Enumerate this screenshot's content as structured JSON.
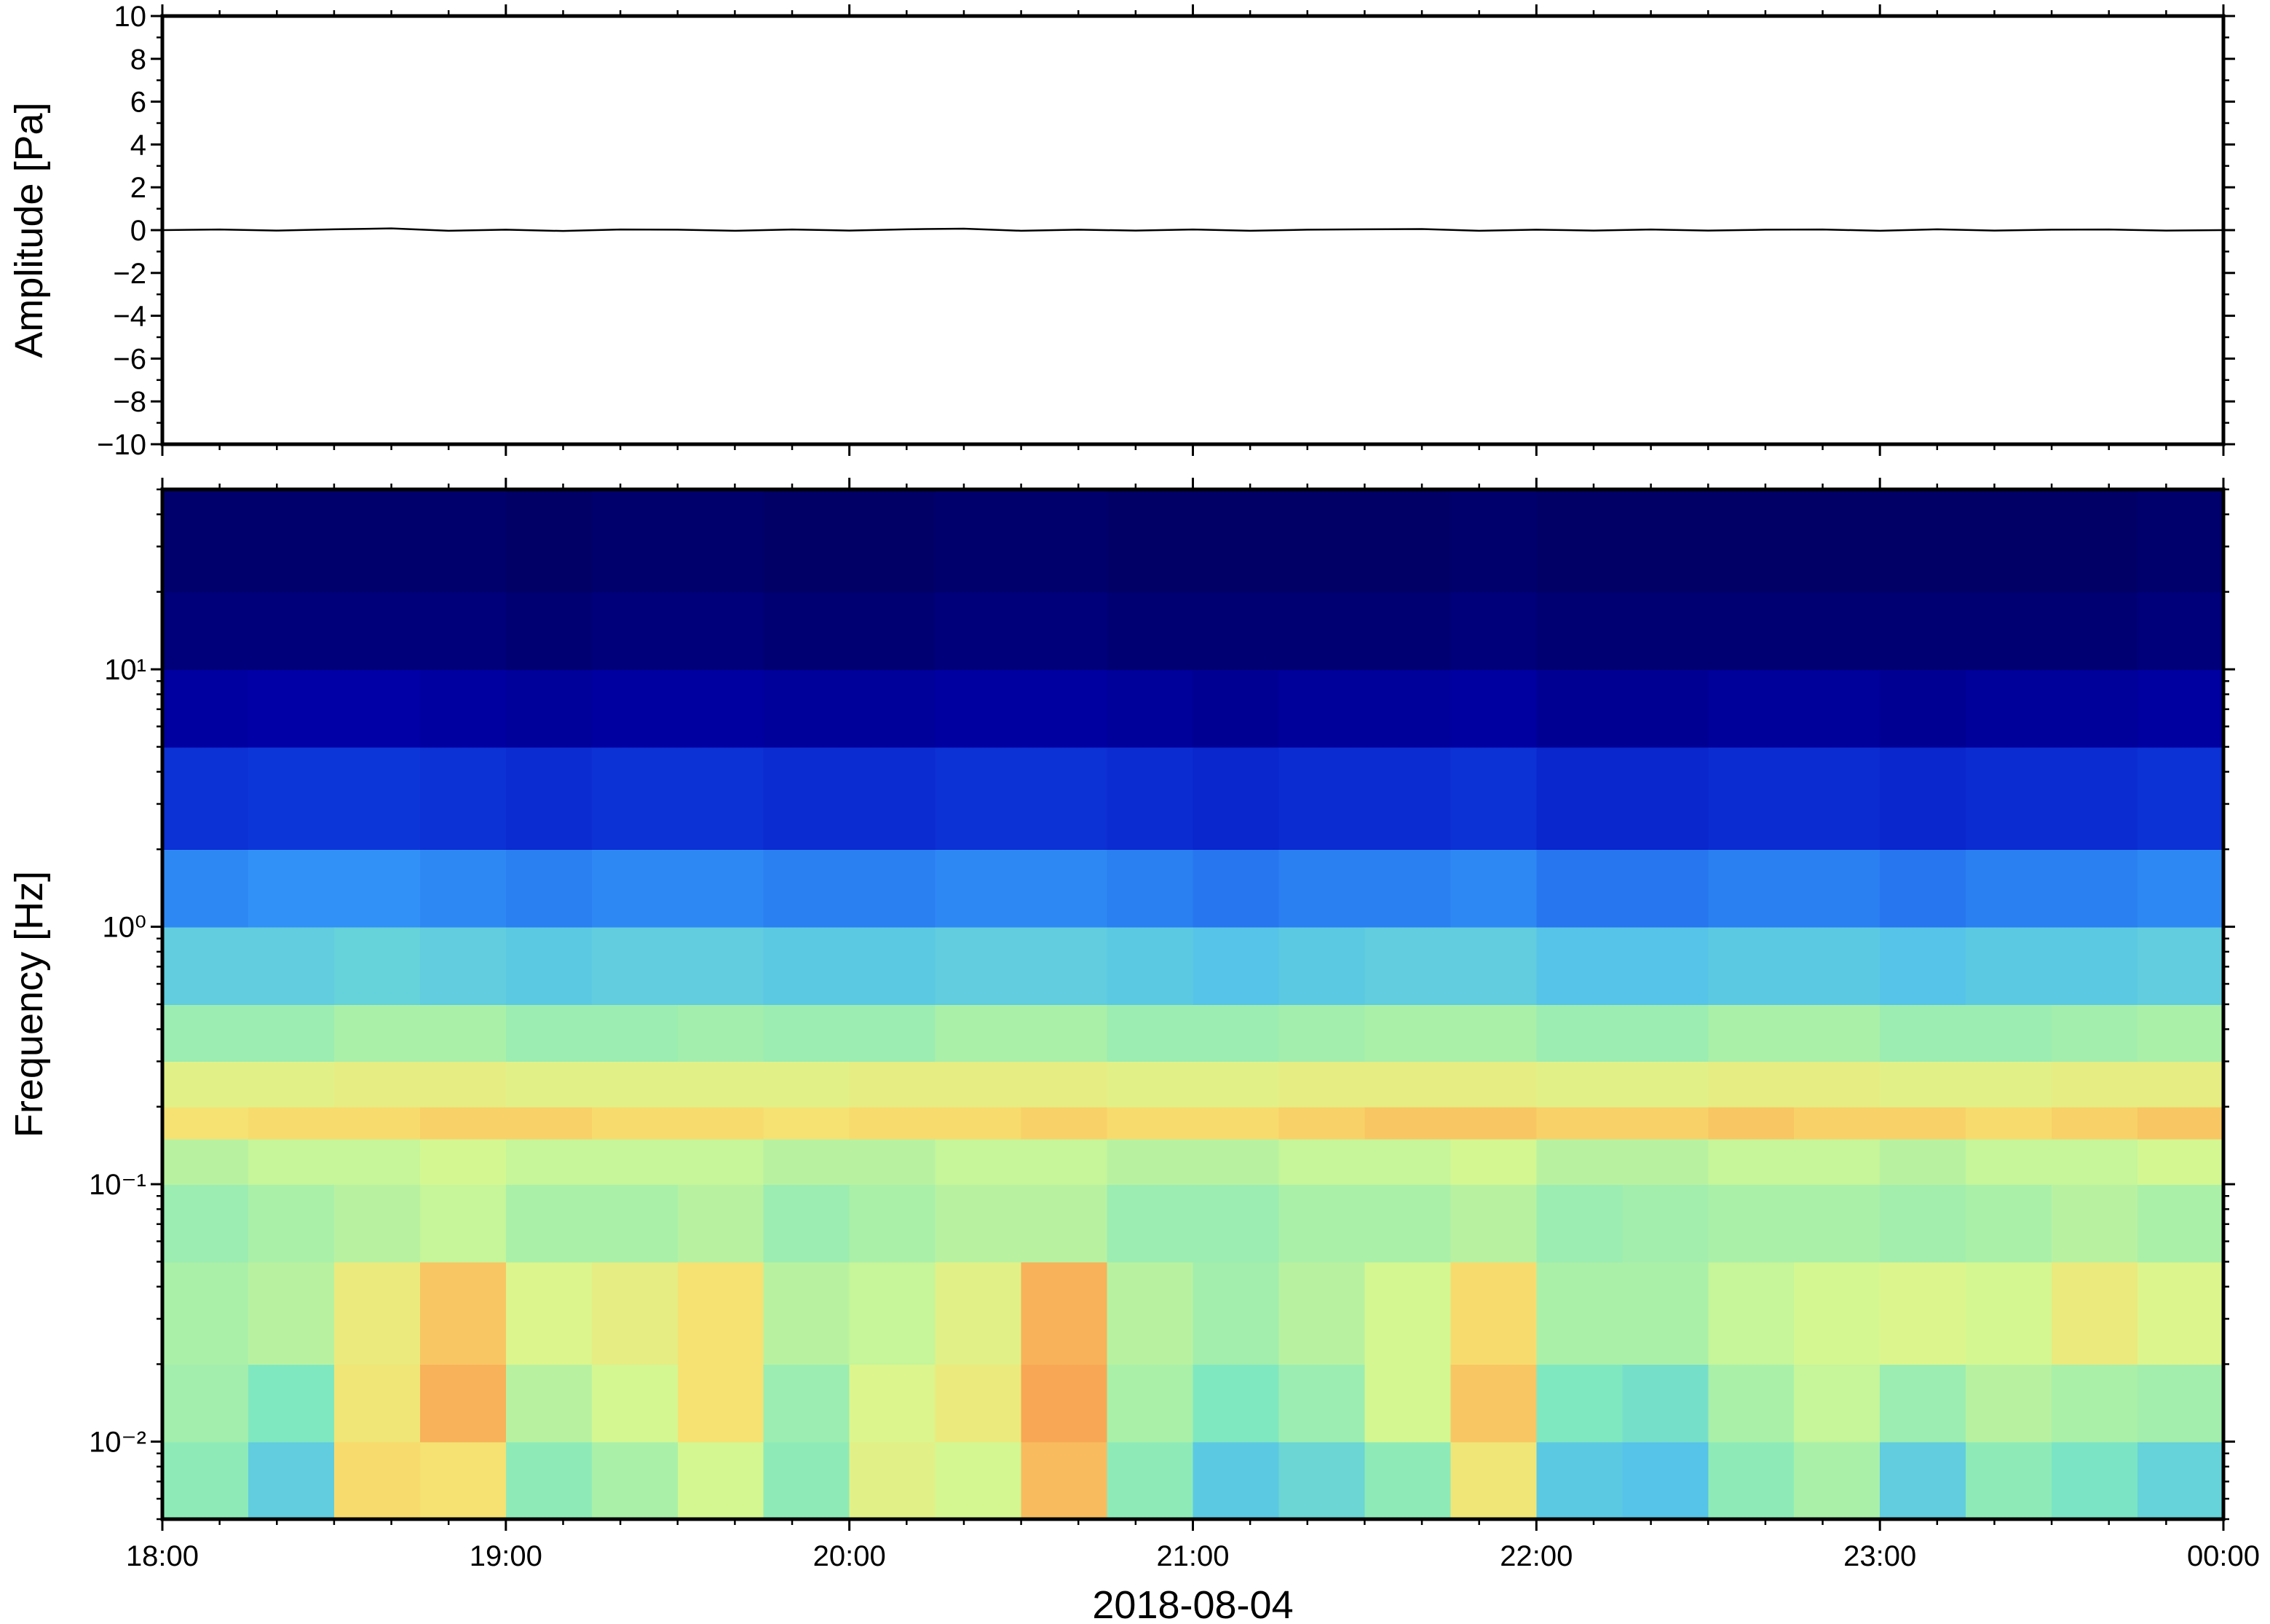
{
  "chart_data": [
    {
      "type": "line",
      "ylabel": "Amplitude [Pa]",
      "xlim": [
        18,
        24
      ],
      "xticks": [
        18,
        19,
        20,
        21,
        22,
        23,
        24
      ],
      "ylim": [
        -10,
        10
      ],
      "yticks": [
        {
          "value": -10,
          "label": "−10"
        },
        {
          "value": -8,
          "label": "−8"
        },
        {
          "value": -6,
          "label": "−6"
        },
        {
          "value": -4,
          "label": "−4"
        },
        {
          "value": -2,
          "label": "−2"
        },
        0,
        2,
        4,
        6,
        8,
        10
      ],
      "color": "#000000",
      "series": [
        {
          "x": [
            18,
            18.1667,
            18.3333,
            18.5,
            18.6667,
            18.8333,
            19,
            19.1667,
            19.3333,
            19.5,
            19.6667,
            19.8333,
            20,
            20.1667,
            20.3333,
            20.5,
            20.6667,
            20.8333,
            21,
            21.1667,
            21.3333,
            21.5,
            21.6667,
            21.8333,
            22,
            22.1667,
            22.3333,
            22.5,
            22.6667,
            22.8333,
            23,
            23.1667,
            23.3333,
            23.5,
            23.6667,
            23.8333,
            24
          ],
          "values": [
            0,
            0.03,
            -0.02,
            0.04,
            0.08,
            -0.03,
            0.02,
            -0.04,
            0.03,
            0.02,
            -0.03,
            0.03,
            -0.02,
            0.04,
            0.07,
            -0.03,
            0.02,
            -0.02,
            0.03,
            -0.03,
            0.02,
            0.04,
            0.05,
            -0.03,
            0.02,
            -0.02,
            0.03,
            -0.02,
            0.02,
            0.03,
            -0.03,
            0.04,
            -0.02,
            0.02,
            0.03,
            -0.02,
            0
          ]
        }
      ]
    },
    {
      "type": "heatmap",
      "xlabel": "2018-08-04",
      "ylabel": "Frequency [Hz]",
      "xlim": [
        18,
        24
      ],
      "xticks": [
        {
          "value": 18,
          "label": "18:00"
        },
        {
          "value": 19,
          "label": "19:00"
        },
        {
          "value": 20,
          "label": "20:00"
        },
        {
          "value": 21,
          "label": "21:00"
        },
        {
          "value": 22,
          "label": "22:00"
        },
        {
          "value": 23,
          "label": "23:00"
        },
        {
          "value": 24,
          "label": "00:00"
        }
      ],
      "ylim": [
        0.005,
        50
      ],
      "log_y": true,
      "yticks": [
        {
          "value": 0.01,
          "label": "10⁻²"
        },
        {
          "value": 0.1,
          "label": "10⁻¹"
        },
        {
          "value": 1,
          "label": "10⁰"
        },
        {
          "value": 10,
          "label": "10¹"
        }
      ],
      "zlim": [
        0,
        1
      ],
      "colormap": [
        "#000060",
        "#0000b0",
        "#1040e0",
        "#3fb0ff",
        "#80e8c0",
        "#d8f890",
        "#f8e070",
        "#f8a050",
        "#f06a3a"
      ],
      "x_edges": [
        18,
        18.25,
        18.5,
        18.75,
        19,
        19.25,
        19.5,
        19.75,
        20,
        20.25,
        20.5,
        20.75,
        21,
        21.25,
        21.5,
        21.75,
        22,
        22.25,
        22.5,
        22.75,
        23,
        23.25,
        23.5,
        23.75,
        24
      ],
      "y_edges": [
        0.005,
        0.01,
        0.02,
        0.05,
        0.1,
        0.15,
        0.2,
        0.3,
        0.5,
        1,
        2,
        5,
        10,
        20,
        50
      ],
      "z": [
        [
          0.52,
          0.44,
          0.76,
          0.74,
          0.52,
          0.56,
          0.62,
          0.52,
          0.66,
          0.62,
          0.82,
          0.52,
          0.43,
          0.46,
          0.52,
          0.72,
          0.43,
          0.42,
          0.52,
          0.56,
          0.44,
          0.52,
          0.49,
          0.45
        ],
        [
          0.55,
          0.5,
          0.72,
          0.84,
          0.58,
          0.62,
          0.74,
          0.54,
          0.64,
          0.7,
          0.86,
          0.56,
          0.5,
          0.54,
          0.62,
          0.8,
          0.5,
          0.48,
          0.56,
          0.6,
          0.54,
          0.58,
          0.56,
          0.55
        ],
        [
          0.56,
          0.58,
          0.7,
          0.8,
          0.64,
          0.68,
          0.74,
          0.58,
          0.6,
          0.66,
          0.84,
          0.58,
          0.55,
          0.58,
          0.62,
          0.76,
          0.56,
          0.56,
          0.6,
          0.62,
          0.64,
          0.62,
          0.7,
          0.64
        ],
        [
          0.54,
          0.56,
          0.58,
          0.6,
          0.56,
          0.56,
          0.58,
          0.54,
          0.56,
          0.58,
          0.58,
          0.54,
          0.54,
          0.56,
          0.56,
          0.58,
          0.54,
          0.55,
          0.56,
          0.56,
          0.55,
          0.56,
          0.58,
          0.56
        ],
        [
          0.58,
          0.6,
          0.6,
          0.62,
          0.6,
          0.6,
          0.6,
          0.58,
          0.58,
          0.6,
          0.6,
          0.58,
          0.58,
          0.6,
          0.6,
          0.62,
          0.58,
          0.58,
          0.6,
          0.6,
          0.58,
          0.6,
          0.6,
          0.62
        ],
        [
          0.74,
          0.76,
          0.76,
          0.78,
          0.78,
          0.76,
          0.76,
          0.74,
          0.76,
          0.76,
          0.78,
          0.76,
          0.76,
          0.78,
          0.8,
          0.8,
          0.78,
          0.78,
          0.8,
          0.78,
          0.78,
          0.76,
          0.78,
          0.8
        ],
        [
          0.66,
          0.66,
          0.68,
          0.68,
          0.66,
          0.66,
          0.66,
          0.66,
          0.68,
          0.68,
          0.68,
          0.66,
          0.66,
          0.68,
          0.68,
          0.68,
          0.66,
          0.66,
          0.68,
          0.68,
          0.66,
          0.66,
          0.68,
          0.68
        ],
        [
          0.54,
          0.54,
          0.56,
          0.56,
          0.54,
          0.54,
          0.55,
          0.54,
          0.54,
          0.56,
          0.56,
          0.54,
          0.54,
          0.55,
          0.56,
          0.56,
          0.54,
          0.54,
          0.56,
          0.56,
          0.54,
          0.54,
          0.55,
          0.56
        ],
        [
          0.44,
          0.44,
          0.45,
          0.44,
          0.43,
          0.44,
          0.44,
          0.43,
          0.43,
          0.44,
          0.44,
          0.43,
          0.42,
          0.43,
          0.44,
          0.44,
          0.42,
          0.42,
          0.43,
          0.43,
          0.42,
          0.43,
          0.43,
          0.44
        ],
        [
          0.33,
          0.34,
          0.34,
          0.33,
          0.32,
          0.33,
          0.33,
          0.32,
          0.32,
          0.33,
          0.33,
          0.32,
          0.31,
          0.32,
          0.32,
          0.33,
          0.31,
          0.31,
          0.32,
          0.32,
          0.31,
          0.32,
          0.32,
          0.33
        ],
        [
          0.22,
          0.23,
          0.23,
          0.22,
          0.21,
          0.22,
          0.22,
          0.21,
          0.21,
          0.22,
          0.22,
          0.21,
          0.2,
          0.21,
          0.21,
          0.22,
          0.2,
          0.2,
          0.21,
          0.21,
          0.2,
          0.21,
          0.21,
          0.22
        ],
        [
          0.1,
          0.11,
          0.11,
          0.1,
          0.09,
          0.1,
          0.1,
          0.09,
          0.09,
          0.1,
          0.1,
          0.09,
          0.08,
          0.09,
          0.09,
          0.1,
          0.08,
          0.08,
          0.09,
          0.09,
          0.08,
          0.09,
          0.09,
          0.1
        ],
        [
          0.04,
          0.04,
          0.04,
          0.04,
          0.03,
          0.04,
          0.04,
          0.03,
          0.03,
          0.04,
          0.04,
          0.03,
          0.03,
          0.03,
          0.03,
          0.04,
          0.03,
          0.03,
          0.03,
          0.03,
          0.03,
          0.03,
          0.03,
          0.04
        ],
        [
          0.02,
          0.02,
          0.02,
          0.02,
          0.01,
          0.02,
          0.02,
          0.01,
          0.01,
          0.02,
          0.02,
          0.01,
          0.01,
          0.01,
          0.01,
          0.02,
          0.01,
          0.01,
          0.01,
          0.01,
          0.01,
          0.01,
          0.01,
          0.02
        ]
      ]
    }
  ]
}
